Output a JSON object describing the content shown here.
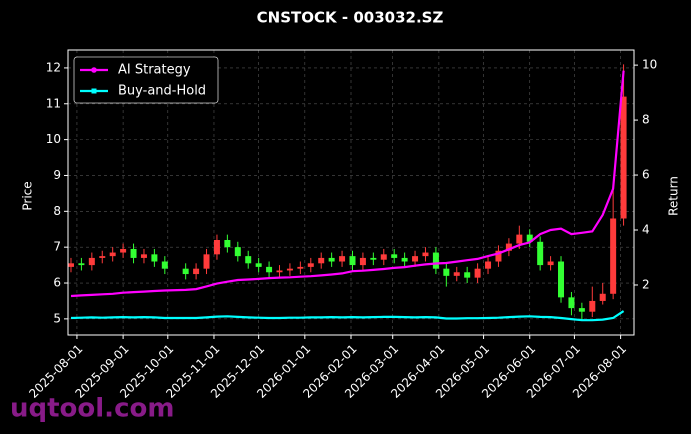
{
  "chart_data": {
    "type": "candlestick",
    "title": "CNSTOCK - 003032.SZ",
    "ylabel": "Price",
    "y2label": "Return",
    "watermark": "uqtool.com",
    "x": [
      "2025-07-28",
      "2025-08-04",
      "2025-08-11",
      "2025-08-18",
      "2025-08-25",
      "2025-09-01",
      "2025-09-08",
      "2025-09-15",
      "2025-09-22",
      "2025-09-29",
      "2025-10-13",
      "2025-10-20",
      "2025-10-27",
      "2025-11-03",
      "2025-11-10",
      "2025-11-17",
      "2025-11-24",
      "2025-12-01",
      "2025-12-08",
      "2025-12-15",
      "2025-12-22",
      "2025-12-29",
      "2026-01-05",
      "2026-01-12",
      "2026-01-19",
      "2026-01-26",
      "2026-02-02",
      "2026-02-09",
      "2026-02-16",
      "2026-02-23",
      "2026-03-02",
      "2026-03-09",
      "2026-03-16",
      "2026-03-23",
      "2026-03-30",
      "2026-04-06",
      "2026-04-13",
      "2026-04-20",
      "2026-04-27",
      "2026-05-04",
      "2026-05-11",
      "2026-05-18",
      "2026-05-25",
      "2026-06-01",
      "2026-06-08",
      "2026-06-15",
      "2026-06-22",
      "2026-06-29",
      "2026-07-06",
      "2026-07-13",
      "2026-07-20",
      "2026-07-27",
      "2026-08-03"
    ],
    "open": [
      6.45,
      6.55,
      6.5,
      6.7,
      6.75,
      6.85,
      6.95,
      6.7,
      6.8,
      6.6,
      6.4,
      6.25,
      6.4,
      6.8,
      7.2,
      7.0,
      6.75,
      6.55,
      6.45,
      6.3,
      6.35,
      6.4,
      6.45,
      6.55,
      6.7,
      6.6,
      6.75,
      6.5,
      6.7,
      6.65,
      6.8,
      6.7,
      6.6,
      6.75,
      6.85,
      6.4,
      6.2,
      6.3,
      6.15,
      6.4,
      6.6,
      6.9,
      7.1,
      7.35,
      7.15,
      6.5,
      6.6,
      5.6,
      5.3,
      5.2,
      5.5,
      5.7,
      7.8
    ],
    "high": [
      6.7,
      6.7,
      6.85,
      6.9,
      7.0,
      7.1,
      7.1,
      6.95,
      6.95,
      6.75,
      6.55,
      6.55,
      6.95,
      7.35,
      7.35,
      7.15,
      6.9,
      6.7,
      6.6,
      6.5,
      6.55,
      6.6,
      6.7,
      6.85,
      6.85,
      6.9,
      6.9,
      6.85,
      6.85,
      6.95,
      6.95,
      6.85,
      6.9,
      7.0,
      7.0,
      6.55,
      6.45,
      6.45,
      6.55,
      6.75,
      7.05,
      7.25,
      7.6,
      7.5,
      7.3,
      6.75,
      6.75,
      5.75,
      5.45,
      5.9,
      6.0,
      8.8,
      12.1
    ],
    "low": [
      6.3,
      6.35,
      6.35,
      6.55,
      6.6,
      6.7,
      6.55,
      6.55,
      6.45,
      6.25,
      6.1,
      6.1,
      6.25,
      6.65,
      6.85,
      6.6,
      6.4,
      6.3,
      6.15,
      6.15,
      6.2,
      6.25,
      6.3,
      6.4,
      6.45,
      6.45,
      6.35,
      6.35,
      6.5,
      6.5,
      6.55,
      6.45,
      6.45,
      6.6,
      6.25,
      5.9,
      6.05,
      6.0,
      6.0,
      6.25,
      6.45,
      6.75,
      6.95,
      7.0,
      6.35,
      6.35,
      5.45,
      5.1,
      4.95,
      5.05,
      5.4,
      5.55,
      7.6
    ],
    "close": [
      6.55,
      6.5,
      6.7,
      6.75,
      6.85,
      6.95,
      6.7,
      6.8,
      6.6,
      6.4,
      6.25,
      6.4,
      6.8,
      7.2,
      7.0,
      6.75,
      6.55,
      6.45,
      6.3,
      6.35,
      6.4,
      6.45,
      6.55,
      6.7,
      6.6,
      6.75,
      6.5,
      6.7,
      6.65,
      6.8,
      6.7,
      6.6,
      6.75,
      6.85,
      6.4,
      6.2,
      6.3,
      6.15,
      6.4,
      6.6,
      6.9,
      7.1,
      7.35,
      7.15,
      6.5,
      6.6,
      5.6,
      5.3,
      5.2,
      5.5,
      5.7,
      7.8,
      11.2
    ],
    "up_color": "#ff3b3b",
    "down_color": "#33ff33",
    "series": [
      {
        "name": "AI Strategy",
        "color": "#ff00ff",
        "marker": "circle",
        "axis": "y2",
        "values": [
          1.6,
          1.62,
          1.64,
          1.66,
          1.68,
          1.72,
          1.74,
          1.76,
          1.78,
          1.8,
          1.82,
          1.85,
          1.95,
          2.05,
          2.12,
          2.18,
          2.2,
          2.22,
          2.25,
          2.27,
          2.28,
          2.3,
          2.32,
          2.35,
          2.38,
          2.42,
          2.5,
          2.52,
          2.55,
          2.58,
          2.62,
          2.65,
          2.7,
          2.75,
          2.78,
          2.8,
          2.85,
          2.9,
          2.95,
          3.05,
          3.15,
          3.3,
          3.45,
          3.55,
          3.85,
          4.0,
          4.05,
          3.85,
          3.9,
          3.95,
          4.55,
          5.5,
          9.8
        ]
      },
      {
        "name": "Buy-and-Hold",
        "color": "#00ffff",
        "marker": "square",
        "axis": "y2",
        "values": [
          0.8,
          0.81,
          0.82,
          0.81,
          0.82,
          0.83,
          0.82,
          0.83,
          0.82,
          0.8,
          0.8,
          0.8,
          0.82,
          0.85,
          0.86,
          0.84,
          0.82,
          0.81,
          0.8,
          0.8,
          0.81,
          0.81,
          0.82,
          0.82,
          0.83,
          0.82,
          0.83,
          0.82,
          0.83,
          0.84,
          0.84,
          0.83,
          0.82,
          0.83,
          0.82,
          0.78,
          0.78,
          0.79,
          0.79,
          0.8,
          0.81,
          0.83,
          0.85,
          0.86,
          0.84,
          0.83,
          0.8,
          0.76,
          0.72,
          0.72,
          0.74,
          0.8,
          1.05
        ]
      }
    ],
    "xlim": [
      "2025-07-26",
      "2026-08-10"
    ],
    "xticks": [
      "2025-08-01",
      "2025-09-01",
      "2025-10-01",
      "2025-11-01",
      "2025-12-01",
      "2026-01-01",
      "2026-02-01",
      "2026-03-01",
      "2026-04-01",
      "2026-05-01",
      "2026-06-01",
      "2026-07-01",
      "2026-08-01"
    ],
    "ylim": [
      4.55,
      12.5
    ],
    "yticks": [
      5,
      6,
      7,
      8,
      9,
      10,
      11,
      12
    ],
    "y2lim": [
      0.18,
      10.55
    ],
    "y2ticks": [
      2,
      4,
      6,
      8,
      10
    ],
    "grid": true,
    "legend": "upper left"
  }
}
